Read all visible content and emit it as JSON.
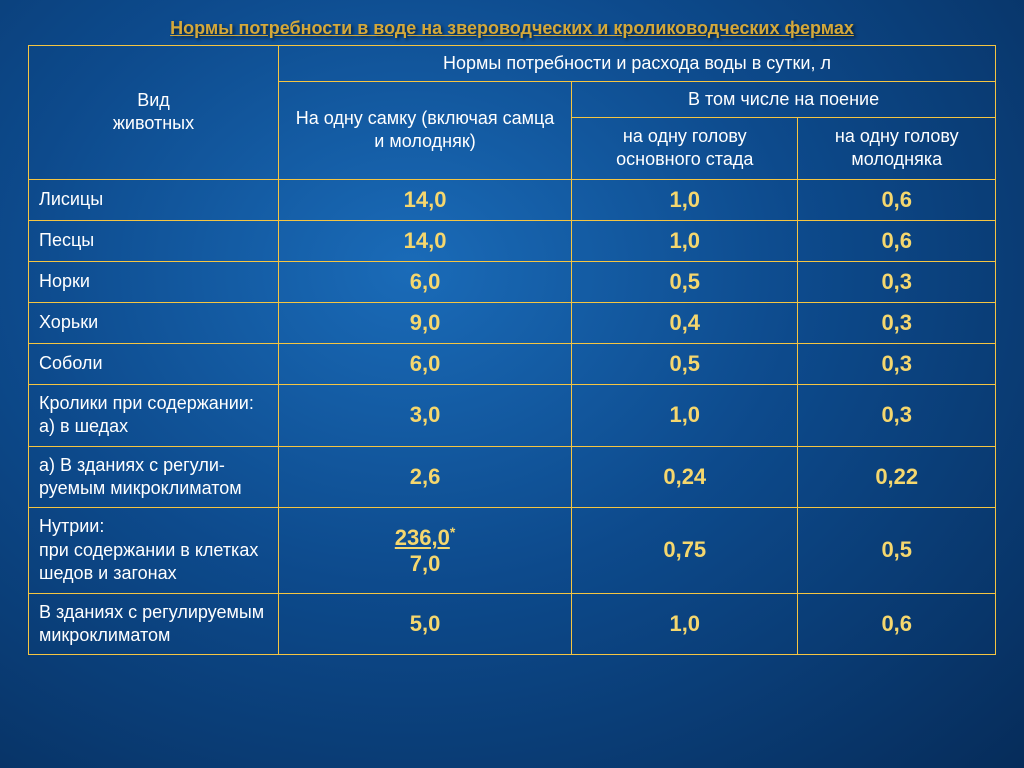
{
  "title_color": "#d4a83a",
  "border_color": "#f5c542",
  "header_text_color": "#ffffff",
  "label_text_color": "#ffffff",
  "value_text_color": "#f5d76e",
  "title": "Нормы потребности в воде на звероводческих и кролиководческих  фермах",
  "headers": {
    "col1": "Вид\nживотных",
    "group": "Нормы потребности и расхода воды в сутки,  л",
    "col2": "На одну самку (включая самца и молодняк)",
    "subgroup": "В том числе на поение",
    "col3": "на одну голову основного стада",
    "col4": "на одну голову молодняка"
  },
  "rows": [
    {
      "label": "Лисицы",
      "v1": "14,0",
      "v2": "1,0",
      "v3": "0,6"
    },
    {
      "label": "Песцы",
      "v1": "14,0",
      "v2": "1,0",
      "v3": "0,6"
    },
    {
      "label": "Норки",
      "v1": "6,0",
      "v2": "0,5",
      "v3": "0,3"
    },
    {
      "label": "Хорьки",
      "v1": "9,0",
      "v2": "0,4",
      "v3": "0,3"
    },
    {
      "label": "Соболи",
      "v1": "6,0",
      "v2": "0,5",
      "v3": "0,3"
    },
    {
      "label": "Кролики при содержании:\nа)    в шедах",
      "v1": "3,0",
      "v2": "1,0",
      "v3": "0,3"
    },
    {
      "label": "а)   В зданиях с  регули-\nруемым микроклиматом",
      "v1": "2,6",
      "v2": "0,24",
      "v3": "0,22"
    },
    {
      "label": "Нутрии:\nпри содержании в клетках шедов и загонах",
      "v1_top": "236,0",
      "v1_star": "*",
      "v1_bottom": "7,0",
      "v2": "0,75",
      "v3": "0,5"
    },
    {
      "label": "В зданиях с регулируемым микроклиматом",
      "v1": "5,0",
      "v2": "1,0",
      "v3": "0,6"
    }
  ]
}
